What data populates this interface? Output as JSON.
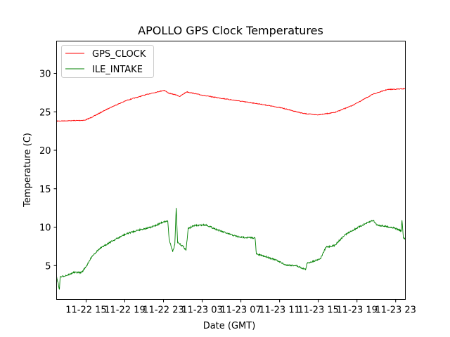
{
  "chart_data": {
    "type": "line",
    "title": "APOLLO GPS Clock Temperatures",
    "xlabel": "Date (GMT)",
    "ylabel": "Temperature (C)",
    "x_units": "hours since 11-22 00:00 GMT",
    "xlim": [
      11.95,
      48.0
    ],
    "ylim": [
      0.6,
      34.2
    ],
    "xticks": [
      15,
      19,
      23,
      27,
      31,
      35,
      39,
      43,
      47
    ],
    "xtick_labels": [
      "11-22 15",
      "11-22 19",
      "11-22 23",
      "11-23 03",
      "11-23 07",
      "11-23 11",
      "11-23 15",
      "11-23 19",
      "11-23 23"
    ],
    "yticks": [
      5,
      10,
      15,
      20,
      25,
      30
    ],
    "ytick_labels": [
      "5",
      "10",
      "15",
      "20",
      "25",
      "30"
    ],
    "grid": false,
    "legend_position": "top-left",
    "series": [
      {
        "name": "GPS_CLOCK",
        "color": "#ff0000",
        "x": [
          11.95,
          14.86,
          15.59,
          17.4,
          19.22,
          21.4,
          23.07,
          23.58,
          24.31,
          24.68,
          25.4,
          27.22,
          30.86,
          33.04,
          35.22,
          37.41,
          38.86,
          40.67,
          42.49,
          44.67,
          46.13,
          48.0
        ],
        "y": [
          23.8,
          23.9,
          24.3,
          25.5,
          26.5,
          27.3,
          27.8,
          27.4,
          27.2,
          27.0,
          27.6,
          27.1,
          26.4,
          26.0,
          25.5,
          24.8,
          24.6,
          24.9,
          25.8,
          27.3,
          27.9,
          28.0
        ]
      },
      {
        "name": "ILE_INTAKE",
        "color": "#008000",
        "x": [
          11.95,
          12.24,
          12.31,
          13.4,
          13.62,
          14.49,
          14.71,
          15.22,
          15.59,
          16.31,
          17.4,
          19.08,
          20.31,
          21.77,
          22.49,
          23.0,
          23.44,
          23.58,
          23.95,
          24.17,
          24.31,
          24.46,
          25.04,
          25.33,
          25.55,
          26.13,
          27.37,
          28.68,
          29.77,
          30.86,
          32.46,
          32.6,
          33.77,
          34.86,
          35.59,
          36.68,
          37.7,
          37.84,
          39.22,
          39.8,
          40.67,
          41.76,
          42.86,
          43.95,
          44.67,
          45.04,
          46.86,
          47.58,
          47.65,
          47.8,
          48.0
        ],
        "y": [
          3.6,
          1.9,
          3.5,
          3.9,
          4.1,
          4.1,
          4.4,
          5.3,
          6.2,
          7.1,
          8.0,
          9.1,
          9.6,
          10.0,
          10.4,
          10.7,
          10.8,
          8.5,
          6.8,
          7.7,
          12.5,
          8.0,
          7.5,
          7.0,
          9.8,
          10.2,
          10.3,
          9.6,
          9.1,
          8.7,
          8.6,
          6.5,
          6.1,
          5.6,
          5.1,
          5.0,
          4.5,
          5.3,
          5.9,
          7.4,
          7.6,
          9.0,
          9.8,
          10.5,
          10.9,
          10.3,
          9.9,
          9.5,
          10.9,
          8.6,
          8.4
        ]
      }
    ]
  }
}
